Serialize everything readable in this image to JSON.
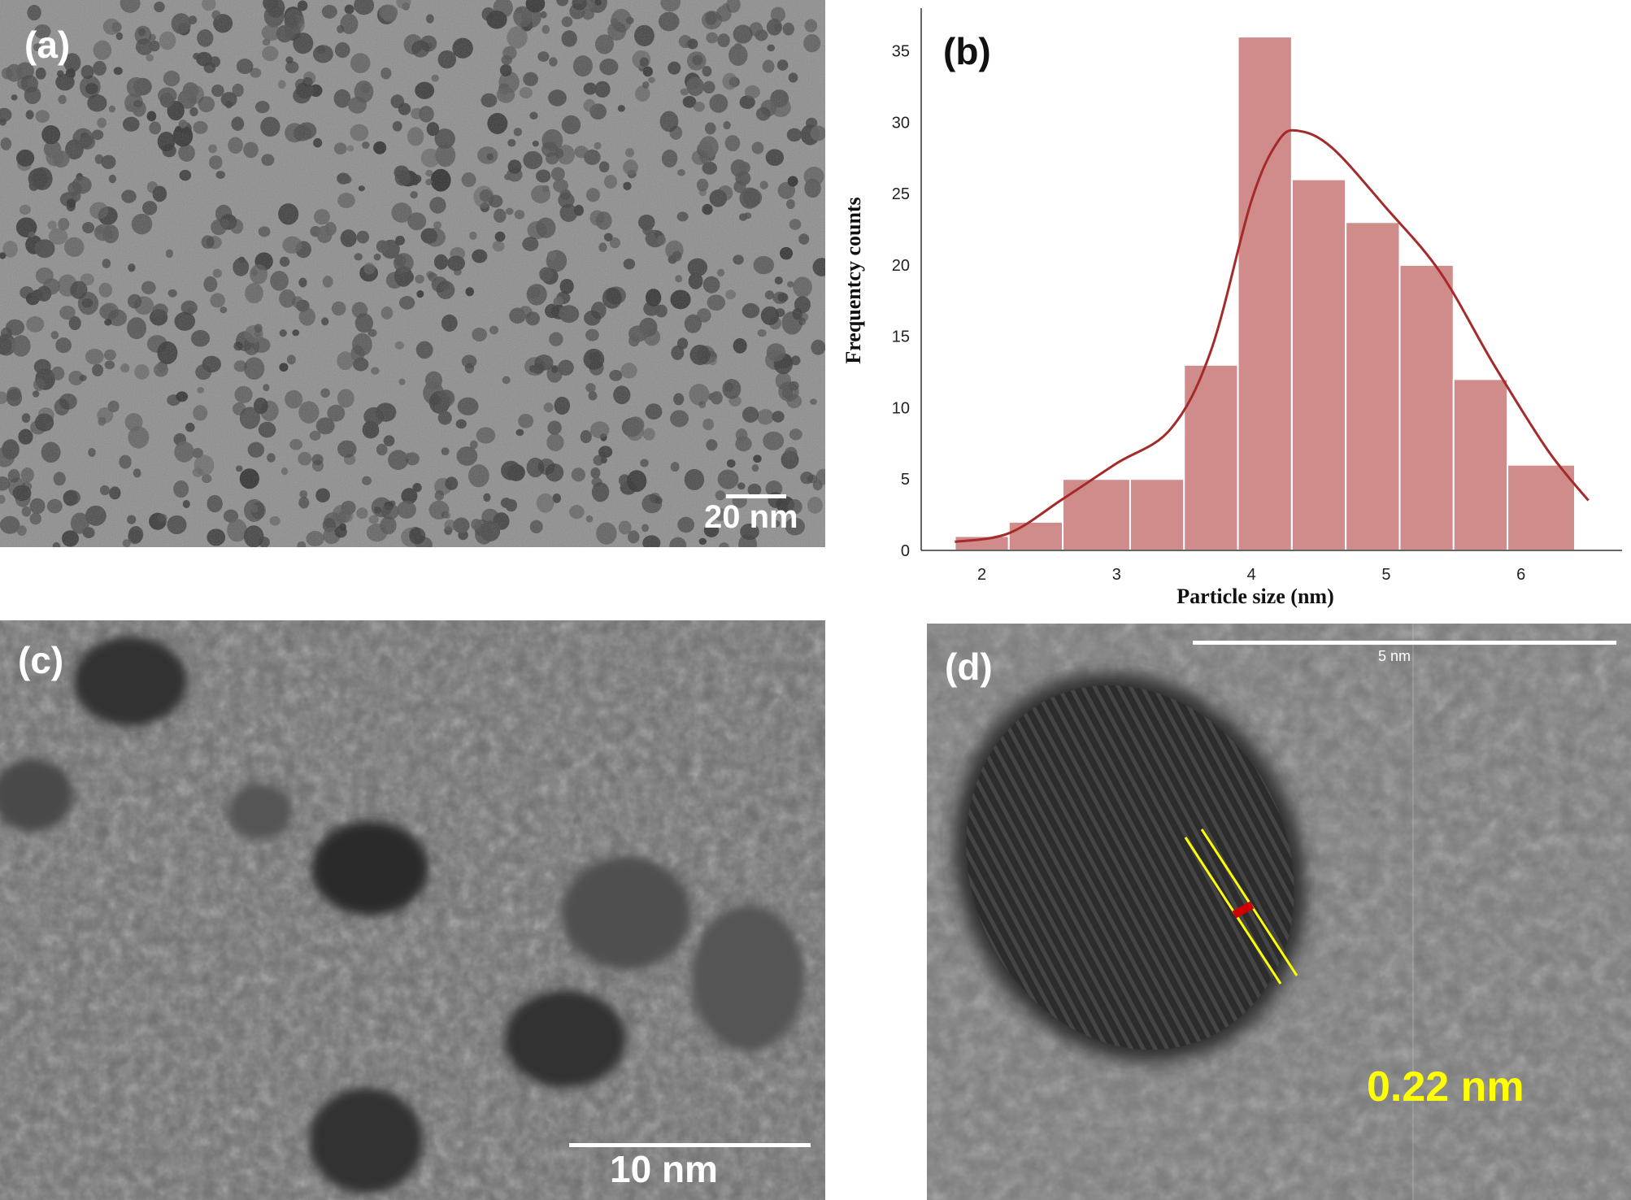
{
  "panels": {
    "a": {
      "label": "(a)",
      "scale_bar": "20 nm"
    },
    "b": {
      "label": "(b)"
    },
    "c": {
      "label": "(c)",
      "scale_bar": "10 nm"
    },
    "d": {
      "label": "(d)",
      "scale_bar": "5 nm",
      "lattice_spacing": "0.22 nm"
    }
  },
  "colors": {
    "bar_fill": "#d08b8b",
    "kde_line": "#a52a2a",
    "lattice_lines": "#ffff00",
    "lattice_marker": "#d00000",
    "spacing_text": "#ffff00"
  },
  "chart_data": {
    "type": "bar",
    "xlabel": "Particle size (nm)",
    "ylabel": "Frequentcy counts",
    "bin_edges": [
      1.8,
      2.2,
      2.6,
      3.1,
      3.5,
      3.9,
      4.3,
      4.7,
      5.1,
      5.5,
      5.9,
      6.4
    ],
    "values": [
      1,
      2,
      5,
      5,
      13,
      36,
      26,
      23,
      20,
      12,
      6
    ],
    "xticks": [
      2,
      3,
      4,
      5,
      6
    ],
    "yticks": [
      0,
      5,
      10,
      15,
      20,
      25,
      30,
      35
    ],
    "xlim": [
      1.55,
      6.75
    ],
    "ylim": [
      0,
      38
    ],
    "grid": false,
    "kde": {
      "x": [
        1.8,
        2.2,
        2.6,
        3.0,
        3.4,
        3.7,
        4.0,
        4.2,
        4.35,
        4.6,
        5.0,
        5.4,
        5.8,
        6.2,
        6.5
      ],
      "y": [
        0.6,
        1.2,
        3.6,
        6.1,
        8.5,
        14.0,
        24.5,
        28.7,
        29.4,
        28.2,
        24.0,
        19.5,
        13.0,
        7.0,
        3.5
      ]
    }
  }
}
